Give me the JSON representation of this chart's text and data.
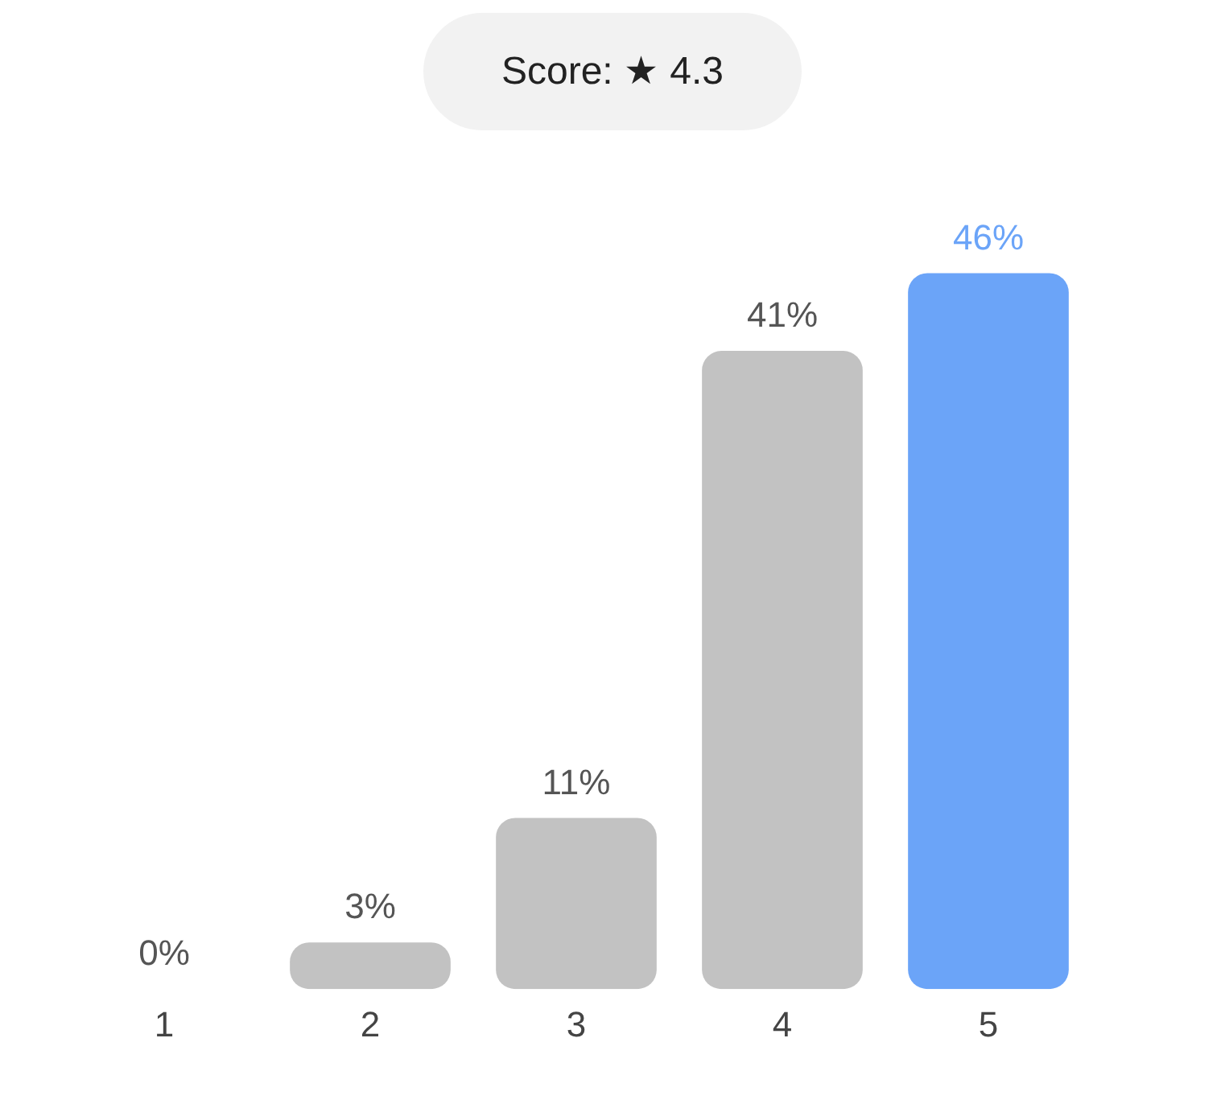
{
  "chart_data": {
    "type": "bar",
    "title": "Score: ★ 4.3",
    "categories": [
      "1",
      "2",
      "3",
      "4",
      "5"
    ],
    "values": [
      0,
      3,
      11,
      41,
      46
    ],
    "colors": [
      "#c2c2c2",
      "#c2c2c2",
      "#c2c2c2",
      "#c2c2c2",
      "#6ba4f8"
    ],
    "value_labels": [
      "0%",
      "3%",
      "11%",
      "41%",
      "46%"
    ],
    "grid": false,
    "legend": false
  }
}
